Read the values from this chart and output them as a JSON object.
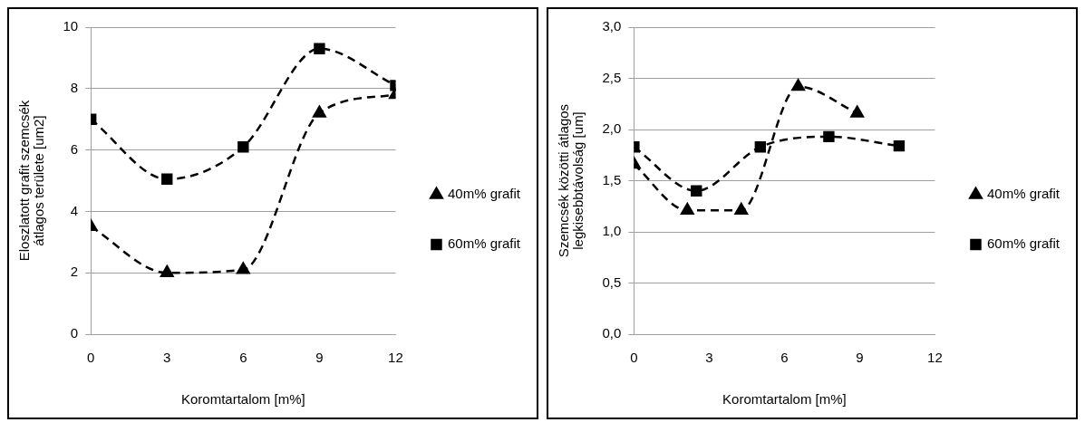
{
  "chart_data": [
    {
      "type": "line",
      "xlabel": "Koromtartalom [m%]",
      "ylabel": "Eloszlatott grafit szemcsék átlagos területe [um2]",
      "x": [
        0,
        3,
        6,
        9,
        12
      ],
      "xlim": [
        0,
        12
      ],
      "xticks": [
        0,
        3,
        6,
        9,
        12
      ],
      "ylim": [
        0,
        10
      ],
      "yticks": [
        0,
        2,
        4,
        6,
        8,
        10
      ],
      "grid": "y",
      "legend": "right",
      "series": [
        {
          "name": "40m% grafit",
          "color": "#000000",
          "marker": "triangle",
          "line_style": "dashed",
          "values": [
            3.5,
            2.0,
            2.1,
            7.2,
            7.8
          ]
        },
        {
          "name": "60m% grafit",
          "color": "#000000",
          "marker": "square",
          "line_style": "dashed",
          "values": [
            7.0,
            5.05,
            6.1,
            9.3,
            8.1
          ]
        }
      ]
    },
    {
      "type": "line",
      "xlabel": "Koromtartalom [m%]",
      "ylabel": "Szemcsék közötti átlagos legkisebbtávolság [um]",
      "xlim": [
        0,
        12
      ],
      "xticks": [
        0,
        3,
        6,
        9,
        12
      ],
      "ylim": [
        0,
        3
      ],
      "yticks": [
        {
          "value": 0,
          "label": "0,0"
        },
        {
          "value": 0.5,
          "label": "0,5"
        },
        {
          "value": 1,
          "label": "1,0"
        },
        {
          "value": 1.5,
          "label": "1,5"
        },
        {
          "value": 2,
          "label": "2,0"
        },
        {
          "value": 2.5,
          "label": "2,5"
        },
        {
          "value": 3,
          "label": "3,0"
        }
      ],
      "grid": "y",
      "legend": "right",
      "series": [
        {
          "name": "40m% grafit",
          "color": "#000000",
          "marker": "triangle",
          "line_style": "dashed",
          "x": [
            0,
            2.13,
            4.28,
            6.55,
            8.9
          ],
          "values": [
            1.66,
            1.21,
            1.21,
            2.42,
            2.16
          ]
        },
        {
          "name": "60m% grafit",
          "color": "#000000",
          "marker": "square",
          "line_style": "dashed",
          "x": [
            0,
            2.49,
            5.04,
            7.77,
            10.57
          ],
          "values": [
            1.83,
            1.4,
            1.83,
            1.93,
            1.84
          ]
        }
      ]
    }
  ]
}
